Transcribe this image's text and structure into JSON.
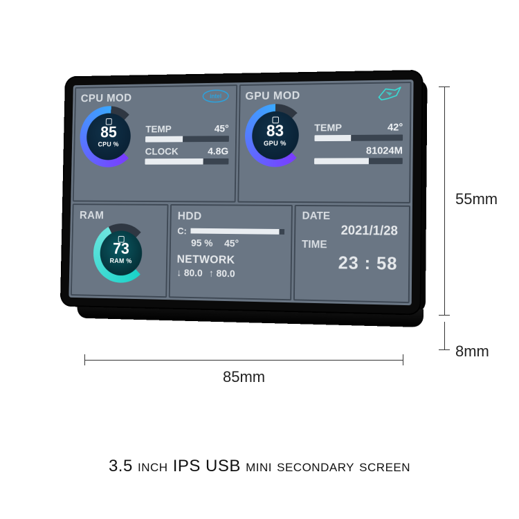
{
  "caption": "3.5 inch IPS USB mini secondary screen",
  "dimensions": {
    "width_label": "85mm",
    "height_label": "55mm",
    "depth_label": "8mm"
  },
  "device": {
    "bezel_color": "#0a0a0a",
    "screen_bg": "#6a7684",
    "panel_border": "#3e4854",
    "text_color": "#e6e9ec",
    "bar_bg": "#3a4450",
    "bar_fill": "#e9edf1"
  },
  "cpu": {
    "title": "CPU MOD",
    "brand": "intel",
    "gauge": {
      "value": 85,
      "unit": "CPU %",
      "size": 94,
      "ring_thickness": 11,
      "ring_bg": "#2f3742",
      "ring_fill_start": "#7a3bff",
      "ring_fill_end": "#3aa8ff",
      "inner_bg_outer": "#0a2236",
      "inner_bg_center": "#10324a",
      "start_angle": 135
    },
    "temp": {
      "label": "TEMP",
      "value": "45°",
      "bar_pct": 45
    },
    "clock": {
      "label": "CLOCK",
      "value": "4.8G",
      "bar_pct": 70
    }
  },
  "gpu": {
    "title": "GPU MOD",
    "brand": "rog",
    "gauge": {
      "value": 83,
      "unit": "GPU %",
      "size": 94,
      "ring_thickness": 11,
      "ring_bg": "#2f3742",
      "ring_fill_start": "#7a3bff",
      "ring_fill_end": "#3aa8ff",
      "inner_bg_outer": "#0a2236",
      "inner_bg_center": "#10324a",
      "start_angle": 135
    },
    "temp": {
      "label": "TEMP",
      "value": "42°",
      "bar_pct": 42
    },
    "mem": {
      "label": "",
      "value": "81024M",
      "bar_pct": 62
    }
  },
  "ram": {
    "title": "RAM",
    "gauge": {
      "value": 73,
      "unit": "RAM %",
      "size": 90,
      "ring_thickness": 11,
      "ring_bg": "#2f3742",
      "ring_fill_start": "#19d2c8",
      "ring_fill_end": "#6ee6df",
      "inner_bg_outer": "#05323a",
      "inner_bg_center": "#0a5a63",
      "start_angle": 135
    }
  },
  "hdd": {
    "title": "HDD",
    "drive": "C:",
    "usage_pct_label": "95 %",
    "usage_pct": 95,
    "temp": "45°",
    "network_title": "NETWORK",
    "down_label": "↓ 80.0",
    "up_label": "↑ 80.0"
  },
  "datetime": {
    "date_label": "DATE",
    "date_value": "2021/1/28",
    "time_label": "TIME",
    "time_value": "23 : 58"
  }
}
